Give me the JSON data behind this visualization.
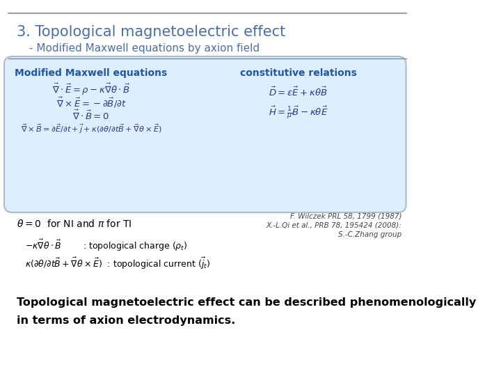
{
  "title": "3. Topological magnetoelectric effect",
  "subtitle": "- Modified Maxwell equations by axion field",
  "title_color": "#4a6fa5",
  "subtitle_color": "#4a6fa5",
  "box_bg_color": "#ddeeff",
  "box_edge_color": "#aabbcc",
  "header_left": "Modified Maxwell equations",
  "header_right": "constitutive relations",
  "header_color": "#2255aa",
  "eq1": "$\\vec{\\nabla} \\cdot \\vec{E} = \\rho - \\kappa\\vec{\\nabla}\\theta \\cdot \\vec{B}$",
  "eq2": "$\\vec{\\nabla} \\times \\vec{E} = -\\partial\\vec{B}/\\partial t$",
  "eq3": "$\\vec{\\nabla} \\cdot \\vec{B} = 0$",
  "eq4": "$\\vec{\\nabla} \\times \\vec{B} = \\partial\\vec{E}/\\partial t + \\vec{j} + \\kappa(\\partial\\theta/\\partial t\\vec{B} + \\vec{\\nabla}\\theta \\times \\vec{E})$",
  "ceq1": "$\\vec{D} = \\epsilon\\vec{E} + \\kappa\\theta\\vec{B}$",
  "ceq2": "$\\vec{H} = \\frac{1}{\\mu}\\vec{B} - \\kappa\\theta\\vec{E}$",
  "theta_note": "$\\theta = 0$  for NI and $\\pi$ for TI",
  "topo_charge": "$-\\kappa\\vec{\\nabla}\\theta \\cdot \\vec{B}$        : topological charge $(\\rho_t)$",
  "topo_current": "$\\kappa(\\partial\\theta/\\partial t\\vec{B} + \\vec{\\nabla}\\theta \\times \\vec{E})$  : topological current $(\\vec{j}_t)$",
  "ref1": "F. Wilczek PRL 58, 1799 (1987)",
  "ref2": "X.-L.Qi et al., PRB 78, 195424 (2008):",
  "ref3": "S.-C.Zhang group",
  "bottom_text1": "Topological magnetoelectric effect can be described phenomenologically",
  "bottom_text2": "in terms of axion electrodynamics.",
  "eq_color": "#333388",
  "text_color": "#000000",
  "ref_color": "#444444",
  "bg_color": "#ffffff"
}
